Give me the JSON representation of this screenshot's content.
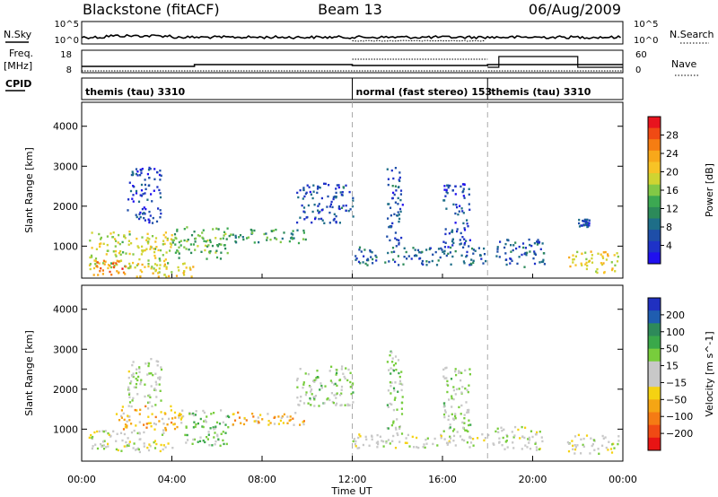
{
  "header": {
    "radar": "Blackstone (fitACF)",
    "beam": "Beam 13",
    "date": "06/Aug/2009"
  },
  "sky_panel": {
    "left_label": "N.Sky",
    "right_label": "N.Search",
    "ticks_left": [
      "10^5",
      "10^0"
    ],
    "ticks_right": [
      "10^5",
      "10^0"
    ]
  },
  "freq_panel": {
    "left_label_1": "Freq.",
    "left_label_2": "[MHz]",
    "right_label": "Nave",
    "ticks_left": [
      "18",
      "8"
    ],
    "ticks_right": [
      "60",
      "0"
    ]
  },
  "cpid_panel": {
    "label": "CPID",
    "segments": [
      {
        "name": "themis (tau) 3310",
        "start": 0,
        "end": 12
      },
      {
        "name": "normal (fast stereo) 153",
        "start": 12,
        "end": 18
      },
      {
        "name": "themis (tau) 3310",
        "start": 18,
        "end": 24
      }
    ]
  },
  "power_colorbar": {
    "label": "Power [dB]",
    "ticks": [
      "28",
      "24",
      "20",
      "16",
      "12",
      "8",
      "4"
    ],
    "colors": [
      "#e8141e",
      "#f04a14",
      "#f57d12",
      "#f8a81a",
      "#f7c326",
      "#cfd432",
      "#82c846",
      "#3ca852",
      "#2c8a5a",
      "#1e6e88",
      "#1e4ea8",
      "#1e32c8",
      "#2010ee"
    ]
  },
  "velocity_colorbar": {
    "label": "Velocity [m s^-1]",
    "ticks": [
      "200",
      "100",
      "50",
      "15",
      "−15",
      "−50",
      "−100",
      "−200"
    ],
    "colors": [
      "#2030c0",
      "#1f5db0",
      "#2e8a5a",
      "#3aa84a",
      "#78cd3c",
      "#c8c8c8",
      "#c8c8c8",
      "#f5d212",
      "#f5a514",
      "#f57b14",
      "#f04a14",
      "#e81414"
    ]
  },
  "xaxis": {
    "label": "Time UT",
    "ticks": [
      "00:00",
      "04:00",
      "08:00",
      "12:00",
      "16:00",
      "20:00",
      "00:00"
    ]
  },
  "chart_data": [
    {
      "type": "heatmap",
      "title": "Power",
      "ylabel": "Slant Range [km]",
      "xlabel": "Time UT",
      "xlim": [
        0,
        24
      ],
      "ylim": [
        200,
        4600
      ],
      "yticks": [
        1000,
        2000,
        3000,
        4000
      ],
      "colorbar": {
        "label": "Power [dB]",
        "range": [
          0,
          32
        ]
      },
      "regions": [
        {
          "t0": 0.3,
          "t1": 4.0,
          "r0": 450,
          "r1": 1400,
          "v": 18
        },
        {
          "t0": 0.5,
          "t1": 2.0,
          "r0": 300,
          "r1": 700,
          "v": 26
        },
        {
          "t0": 4.0,
          "t1": 6.5,
          "r0": 700,
          "r1": 1500,
          "v": 14
        },
        {
          "t0": 6.5,
          "t1": 10.0,
          "r0": 1100,
          "r1": 1450,
          "v": 12
        },
        {
          "t0": 2.0,
          "t1": 5.0,
          "r0": 250,
          "r1": 600,
          "v": 20
        },
        {
          "t0": 9.5,
          "t1": 12.0,
          "r0": 1600,
          "r1": 2600,
          "v": 6
        },
        {
          "t0": 12.0,
          "t1": 18.0,
          "r0": 550,
          "r1": 1000,
          "v": 8
        },
        {
          "t0": 13.5,
          "t1": 14.2,
          "r0": 1000,
          "r1": 3000,
          "v": 6
        },
        {
          "t0": 16.0,
          "t1": 17.2,
          "r0": 1000,
          "r1": 2600,
          "v": 5
        },
        {
          "t0": 18.2,
          "t1": 20.5,
          "r0": 500,
          "r1": 1200,
          "v": 7
        },
        {
          "t0": 21.5,
          "t1": 23.8,
          "r0": 350,
          "r1": 900,
          "v": 20
        },
        {
          "t0": 2.0,
          "t1": 3.5,
          "r0": 1600,
          "r1": 3000,
          "v": 5
        },
        {
          "t0": 22.0,
          "t1": 22.5,
          "r0": 1500,
          "r1": 1700,
          "v": 6
        }
      ]
    },
    {
      "type": "heatmap",
      "title": "Velocity",
      "ylabel": "Slant Range [km]",
      "xlabel": "Time UT",
      "xlim": [
        0,
        24
      ],
      "ylim": [
        200,
        4600
      ],
      "yticks": [
        1000,
        2000,
        3000,
        4000
      ],
      "colorbar": {
        "label": "Velocity [m s^-1]",
        "range": [
          -250,
          250
        ]
      },
      "regions": [
        {
          "t0": 0.3,
          "t1": 4.0,
          "r0": 450,
          "r1": 1000,
          "v": 0
        },
        {
          "t0": 1.5,
          "t1": 4.5,
          "r0": 1000,
          "r1": 1600,
          "v": -80
        },
        {
          "t0": 4.5,
          "t1": 6.5,
          "r0": 600,
          "r1": 1500,
          "v": 60
        },
        {
          "t0": 6.5,
          "t1": 10.0,
          "r0": 1100,
          "r1": 1450,
          "v": -80
        },
        {
          "t0": 9.5,
          "t1": 12.0,
          "r0": 1600,
          "r1": 2600,
          "v": 30
        },
        {
          "t0": 12.0,
          "t1": 18.0,
          "r0": 550,
          "r1": 900,
          "v": 0
        },
        {
          "t0": 13.5,
          "t1": 14.2,
          "r0": 900,
          "r1": 3000,
          "v": 40
        },
        {
          "t0": 16.0,
          "t1": 17.2,
          "r0": 900,
          "r1": 2600,
          "v": 30
        },
        {
          "t0": 18.2,
          "t1": 20.5,
          "r0": 500,
          "r1": 1100,
          "v": 0
        },
        {
          "t0": 21.5,
          "t1": 23.8,
          "r0": 400,
          "r1": 900,
          "v": 0
        },
        {
          "t0": 2.0,
          "t1": 3.5,
          "r0": 1600,
          "r1": 2800,
          "v": 20
        }
      ]
    }
  ]
}
